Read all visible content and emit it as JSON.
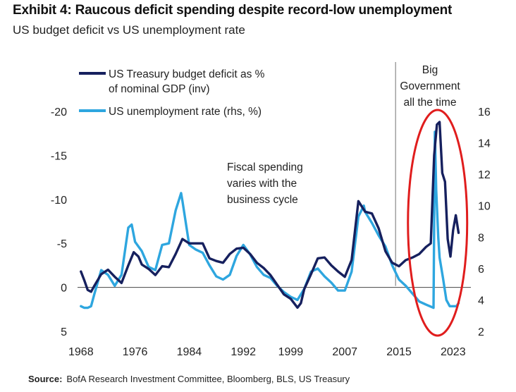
{
  "header": {
    "title": "Exhibit 4: Raucous deficit spending despite record-low unemployment",
    "subtitle": "US budget deficit vs US unemployment rate"
  },
  "source": {
    "label": "Source:",
    "text": "BofA Research Investment Committee, Bloomberg, BLS, US Treasury"
  },
  "chart_data": {
    "type": "line",
    "legend_position": "top-left",
    "grid": false,
    "x_ticks": [
      "1968",
      "1976",
      "1984",
      "1992",
      "1999",
      "2007",
      "2015",
      "2023"
    ],
    "xlim": [
      1967.5,
      2025
    ],
    "y_left": {
      "ticks": [
        "-20",
        "-15",
        "-10",
        "-5",
        "0",
        "5"
      ],
      "range": [
        5,
        -20
      ],
      "inverted": true
    },
    "y_right": {
      "ticks": [
        "16",
        "14",
        "12",
        "10",
        "8",
        "6",
        "4",
        "2"
      ],
      "range": [
        2,
        16
      ]
    },
    "series": [
      {
        "name": "US Treasury budget deficit as % of nominal GDP (inv)",
        "axis": "left",
        "color": "#16205e",
        "points": [
          [
            1968,
            -1.8
          ],
          [
            1968.5,
            -0.8
          ],
          [
            1969,
            0.3
          ],
          [
            1969.5,
            0.5
          ],
          [
            1970,
            -0.2
          ],
          [
            1971,
            -1.5
          ],
          [
            1972,
            -2.0
          ],
          [
            1973,
            -1.2
          ],
          [
            1974,
            -0.5
          ],
          [
            1975,
            -2.5
          ],
          [
            1975.8,
            -4.0
          ],
          [
            1976.5,
            -3.5
          ],
          [
            1977,
            -2.6
          ],
          [
            1978,
            -2.1
          ],
          [
            1979,
            -1.4
          ],
          [
            1980,
            -2.4
          ],
          [
            1981,
            -2.3
          ],
          [
            1982,
            -3.8
          ],
          [
            1983,
            -5.5
          ],
          [
            1984,
            -5.0
          ],
          [
            1985,
            -5.0
          ],
          [
            1986,
            -5.0
          ],
          [
            1987,
            -3.3
          ],
          [
            1988,
            -3.0
          ],
          [
            1989,
            -2.8
          ],
          [
            1990,
            -3.8
          ],
          [
            1991,
            -4.4
          ],
          [
            1992,
            -4.5
          ],
          [
            1993,
            -3.8
          ],
          [
            1994,
            -2.8
          ],
          [
            1995,
            -2.2
          ],
          [
            1996,
            -1.4
          ],
          [
            1997,
            -0.3
          ],
          [
            1998,
            0.8
          ],
          [
            1999,
            1.3
          ],
          [
            2000,
            2.3
          ],
          [
            2000.5,
            1.8
          ],
          [
            2001,
            0.2
          ],
          [
            2002,
            -1.5
          ],
          [
            2003,
            -3.3
          ],
          [
            2004,
            -3.4
          ],
          [
            2005,
            -2.5
          ],
          [
            2006,
            -1.8
          ],
          [
            2007,
            -1.2
          ],
          [
            2008,
            -3.1
          ],
          [
            2009,
            -9.8
          ],
          [
            2010,
            -8.6
          ],
          [
            2011,
            -8.4
          ],
          [
            2012,
            -6.7
          ],
          [
            2013,
            -4.1
          ],
          [
            2014,
            -2.8
          ],
          [
            2015,
            -2.4
          ],
          [
            2016,
            -3.1
          ],
          [
            2017,
            -3.4
          ],
          [
            2018,
            -3.8
          ],
          [
            2019,
            -4.6
          ],
          [
            2019.7,
            -5.0
          ],
          [
            2020.2,
            -15.0
          ],
          [
            2020.6,
            -18.5
          ],
          [
            2021,
            -18.8
          ],
          [
            2021.4,
            -13.0
          ],
          [
            2021.8,
            -12.0
          ],
          [
            2022.2,
            -5.5
          ],
          [
            2022.6,
            -3.5
          ],
          [
            2023,
            -6.5
          ],
          [
            2023.4,
            -8.2
          ],
          [
            2023.8,
            -6.2
          ]
        ]
      },
      {
        "name": "US unemployment rate (rhs, %)",
        "axis": "right",
        "color": "#2ea6df",
        "points": [
          [
            1968,
            3.6
          ],
          [
            1968.5,
            3.5
          ],
          [
            1969,
            3.5
          ],
          [
            1969.5,
            3.6
          ],
          [
            1970,
            4.4
          ],
          [
            1971,
            5.9
          ],
          [
            1972,
            5.6
          ],
          [
            1973,
            4.9
          ],
          [
            1974,
            5.6
          ],
          [
            1975,
            8.6
          ],
          [
            1975.5,
            8.8
          ],
          [
            1976,
            7.7
          ],
          [
            1977,
            7.1
          ],
          [
            1978,
            6.1
          ],
          [
            1979,
            5.9
          ],
          [
            1980,
            7.5
          ],
          [
            1981,
            7.6
          ],
          [
            1982,
            9.7
          ],
          [
            1982.8,
            10.8
          ],
          [
            1983,
            10.3
          ],
          [
            1984,
            7.5
          ],
          [
            1985,
            7.2
          ],
          [
            1986,
            7.0
          ],
          [
            1987,
            6.2
          ],
          [
            1988,
            5.5
          ],
          [
            1989,
            5.3
          ],
          [
            1990,
            5.6
          ],
          [
            1991,
            6.8
          ],
          [
            1992,
            7.5
          ],
          [
            1993,
            6.9
          ],
          [
            1994,
            6.1
          ],
          [
            1995,
            5.6
          ],
          [
            1996,
            5.4
          ],
          [
            1997,
            4.9
          ],
          [
            1998,
            4.5
          ],
          [
            1999,
            4.2
          ],
          [
            2000,
            4.0
          ],
          [
            2001,
            4.7
          ],
          [
            2002,
            5.8
          ],
          [
            2003,
            6.0
          ],
          [
            2004,
            5.5
          ],
          [
            2005,
            5.1
          ],
          [
            2006,
            4.6
          ],
          [
            2007,
            4.6
          ],
          [
            2008,
            5.8
          ],
          [
            2009,
            9.3
          ],
          [
            2009.8,
            10.0
          ],
          [
            2010,
            9.6
          ],
          [
            2011,
            8.9
          ],
          [
            2012,
            8.1
          ],
          [
            2013,
            7.4
          ],
          [
            2014,
            6.2
          ],
          [
            2015,
            5.3
          ],
          [
            2016,
            4.9
          ],
          [
            2017,
            4.4
          ],
          [
            2018,
            3.9
          ],
          [
            2019,
            3.7
          ],
          [
            2020.1,
            3.5
          ],
          [
            2020.3,
            14.7
          ],
          [
            2020.5,
            11.0
          ],
          [
            2020.8,
            8.0
          ],
          [
            2021,
            6.7
          ],
          [
            2021.5,
            5.4
          ],
          [
            2022,
            4.0
          ],
          [
            2022.5,
            3.6
          ],
          [
            2023,
            3.6
          ],
          [
            2023.5,
            3.6
          ],
          [
            2023.8,
            3.8
          ]
        ]
      }
    ],
    "annotations": {
      "fiscal_line1": "Fiscal spending",
      "fiscal_line2": "varies with the",
      "fiscal_line3": "business cycle",
      "big_line1": "Big",
      "big_line2": "Government",
      "big_line3": "all the time"
    },
    "legend": {
      "deficit_line1": "US Treasury budget deficit as %",
      "deficit_line2": "of nominal GDP (inv)",
      "unemployment": "US unemployment rate (rhs, %)"
    },
    "vertical_marker_year": 2014.5,
    "highlight_color": "#e01d1d"
  }
}
